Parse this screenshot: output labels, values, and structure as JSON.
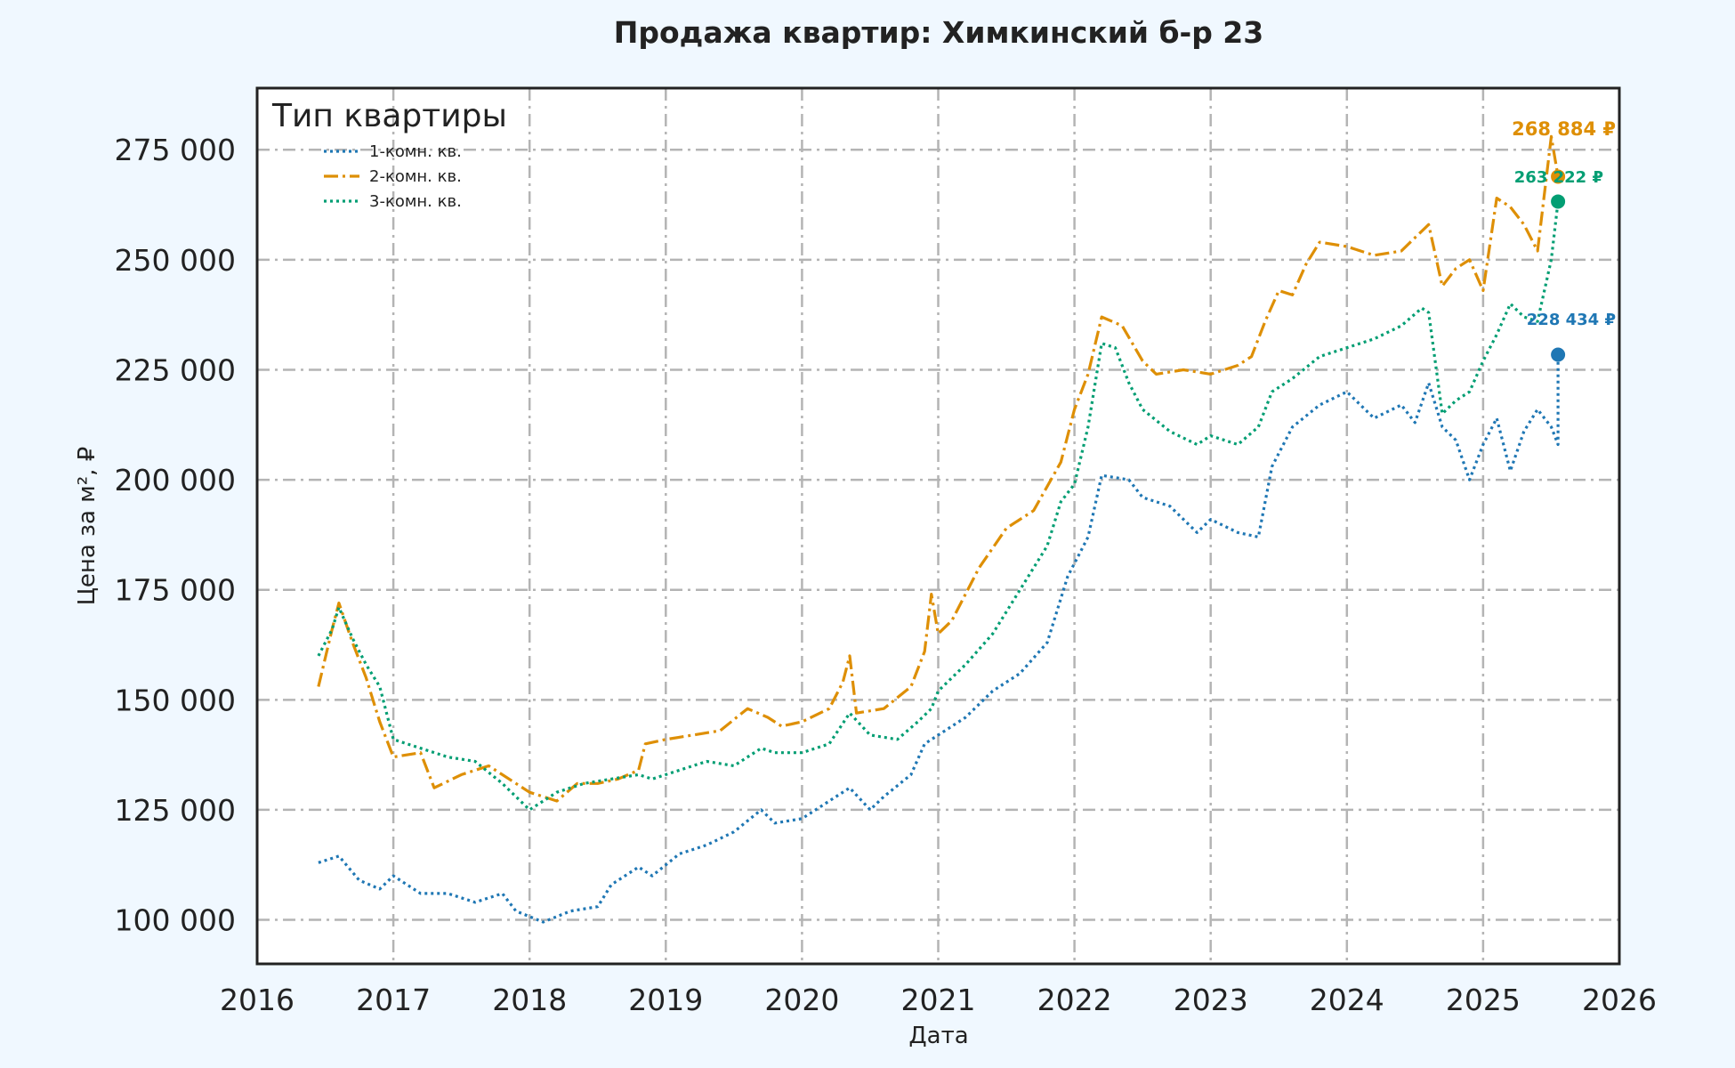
{
  "chart_data": {
    "type": "line",
    "title": "Продажа квартир: Химкинский б-р 23",
    "xlabel": "Дата",
    "ylabel": "Цена за м², ₽",
    "x_ticks": [
      "2016",
      "2017",
      "2018",
      "2019",
      "2020",
      "2021",
      "2022",
      "2023",
      "2024",
      "2025",
      "2026"
    ],
    "y_ticks": [
      "100 000",
      "125 000",
      "150 000",
      "175 000",
      "200 000",
      "225 000",
      "250 000",
      "275 000"
    ],
    "y_tick_values": [
      100000,
      125000,
      150000,
      175000,
      200000,
      225000,
      250000,
      275000
    ],
    "xlim": [
      2016.0,
      2026.0
    ],
    "ylim": [
      90000,
      289000
    ],
    "grid": true,
    "legend": {
      "title": "Тип квартиры",
      "position": "top-left"
    },
    "series": [
      {
        "name": "1-комн. кв.",
        "color": "#1f77b4",
        "style": "dotted",
        "end_label": "228 434 ₽",
        "points": [
          [
            2016.45,
            113000
          ],
          [
            2016.6,
            114500
          ],
          [
            2016.75,
            109000
          ],
          [
            2016.9,
            107000
          ],
          [
            2017.0,
            110000
          ],
          [
            2017.2,
            106000
          ],
          [
            2017.4,
            106000
          ],
          [
            2017.6,
            104000
          ],
          [
            2017.8,
            106000
          ],
          [
            2017.9,
            102000
          ],
          [
            2018.1,
            99500
          ],
          [
            2018.3,
            102000
          ],
          [
            2018.5,
            103000
          ],
          [
            2018.6,
            108000
          ],
          [
            2018.8,
            112000
          ],
          [
            2018.9,
            110000
          ],
          [
            2019.1,
            115000
          ],
          [
            2019.3,
            117000
          ],
          [
            2019.5,
            120000
          ],
          [
            2019.7,
            125000
          ],
          [
            2019.8,
            122000
          ],
          [
            2020.0,
            123000
          ],
          [
            2020.2,
            127000
          ],
          [
            2020.35,
            130000
          ],
          [
            2020.5,
            125000
          ],
          [
            2020.6,
            128000
          ],
          [
            2020.8,
            133000
          ],
          [
            2020.9,
            140000
          ],
          [
            2021.0,
            142000
          ],
          [
            2021.2,
            146000
          ],
          [
            2021.4,
            152000
          ],
          [
            2021.6,
            156000
          ],
          [
            2021.8,
            163000
          ],
          [
            2021.95,
            178000
          ],
          [
            2022.1,
            187000
          ],
          [
            2022.2,
            201000
          ],
          [
            2022.4,
            200000
          ],
          [
            2022.5,
            196000
          ],
          [
            2022.7,
            194000
          ],
          [
            2022.9,
            188000
          ],
          [
            2023.0,
            191000
          ],
          [
            2023.2,
            188000
          ],
          [
            2023.35,
            187000
          ],
          [
            2023.45,
            203000
          ],
          [
            2023.6,
            212000
          ],
          [
            2023.8,
            217000
          ],
          [
            2024.0,
            220000
          ],
          [
            2024.2,
            214000
          ],
          [
            2024.4,
            217000
          ],
          [
            2024.5,
            213000
          ],
          [
            2024.6,
            222000
          ],
          [
            2024.7,
            212000
          ],
          [
            2024.8,
            209000
          ],
          [
            2024.9,
            200000
          ],
          [
            2025.0,
            208000
          ],
          [
            2025.1,
            214000
          ],
          [
            2025.2,
            202000
          ],
          [
            2025.3,
            211000
          ],
          [
            2025.4,
            216000
          ],
          [
            2025.5,
            212000
          ],
          [
            2025.55,
            208000
          ],
          [
            2025.55,
            228434
          ]
        ]
      },
      {
        "name": "2-комн. кв.",
        "color": "#de8f05",
        "style": "dashdot",
        "end_label": "268 884 ₽",
        "points": [
          [
            2016.45,
            153000
          ],
          [
            2016.55,
            166000
          ],
          [
            2016.6,
            172000
          ],
          [
            2016.7,
            163000
          ],
          [
            2016.8,
            155000
          ],
          [
            2016.9,
            145000
          ],
          [
            2017.0,
            137000
          ],
          [
            2017.2,
            138000
          ],
          [
            2017.3,
            130000
          ],
          [
            2017.5,
            133000
          ],
          [
            2017.7,
            135000
          ],
          [
            2017.9,
            131000
          ],
          [
            2018.0,
            129000
          ],
          [
            2018.2,
            127000
          ],
          [
            2018.35,
            131000
          ],
          [
            2018.5,
            131000
          ],
          [
            2018.65,
            132000
          ],
          [
            2018.8,
            134000
          ],
          [
            2018.85,
            140000
          ],
          [
            2019.0,
            141000
          ],
          [
            2019.2,
            142000
          ],
          [
            2019.4,
            143000
          ],
          [
            2019.6,
            148000
          ],
          [
            2019.75,
            146000
          ],
          [
            2019.85,
            144000
          ],
          [
            2020.0,
            145000
          ],
          [
            2020.2,
            148000
          ],
          [
            2020.3,
            154000
          ],
          [
            2020.35,
            160000
          ],
          [
            2020.4,
            147000
          ],
          [
            2020.6,
            148000
          ],
          [
            2020.8,
            153000
          ],
          [
            2020.9,
            161000
          ],
          [
            2020.95,
            174000
          ],
          [
            2021.0,
            165000
          ],
          [
            2021.1,
            168000
          ],
          [
            2021.3,
            180000
          ],
          [
            2021.5,
            189000
          ],
          [
            2021.7,
            193000
          ],
          [
            2021.9,
            204000
          ],
          [
            2022.0,
            216000
          ],
          [
            2022.1,
            224000
          ],
          [
            2022.2,
            237000
          ],
          [
            2022.35,
            235000
          ],
          [
            2022.5,
            227000
          ],
          [
            2022.6,
            224000
          ],
          [
            2022.8,
            225000
          ],
          [
            2023.0,
            224000
          ],
          [
            2023.2,
            226000
          ],
          [
            2023.3,
            228000
          ],
          [
            2023.4,
            236000
          ],
          [
            2023.5,
            243000
          ],
          [
            2023.6,
            242000
          ],
          [
            2023.7,
            249000
          ],
          [
            2023.8,
            254000
          ],
          [
            2024.0,
            253000
          ],
          [
            2024.2,
            251000
          ],
          [
            2024.4,
            252000
          ],
          [
            2024.5,
            255000
          ],
          [
            2024.6,
            258000
          ],
          [
            2024.7,
            244000
          ],
          [
            2024.8,
            248000
          ],
          [
            2024.9,
            250000
          ],
          [
            2025.0,
            243000
          ],
          [
            2025.1,
            264000
          ],
          [
            2025.2,
            262000
          ],
          [
            2025.3,
            258000
          ],
          [
            2025.4,
            252000
          ],
          [
            2025.5,
            278000
          ],
          [
            2025.55,
            268884
          ]
        ]
      },
      {
        "name": "3-комн. кв.",
        "color": "#029e73",
        "style": "dotted",
        "end_label": "263 222 ₽",
        "points": [
          [
            2016.45,
            160000
          ],
          [
            2016.55,
            166000
          ],
          [
            2016.6,
            171000
          ],
          [
            2016.7,
            164000
          ],
          [
            2016.8,
            158000
          ],
          [
            2016.9,
            153000
          ],
          [
            2017.0,
            141000
          ],
          [
            2017.2,
            139000
          ],
          [
            2017.4,
            137000
          ],
          [
            2017.6,
            136000
          ],
          [
            2017.8,
            131000
          ],
          [
            2018.0,
            125000
          ],
          [
            2018.2,
            129000
          ],
          [
            2018.4,
            131000
          ],
          [
            2018.6,
            132000
          ],
          [
            2018.8,
            133000
          ],
          [
            2018.9,
            132000
          ],
          [
            2019.1,
            134000
          ],
          [
            2019.3,
            136000
          ],
          [
            2019.5,
            135000
          ],
          [
            2019.7,
            139000
          ],
          [
            2019.8,
            138000
          ],
          [
            2020.0,
            138000
          ],
          [
            2020.2,
            140000
          ],
          [
            2020.35,
            147000
          ],
          [
            2020.5,
            142000
          ],
          [
            2020.7,
            141000
          ],
          [
            2020.85,
            145000
          ],
          [
            2020.95,
            148000
          ],
          [
            2021.0,
            152000
          ],
          [
            2021.2,
            158000
          ],
          [
            2021.4,
            165000
          ],
          [
            2021.6,
            175000
          ],
          [
            2021.8,
            185000
          ],
          [
            2021.9,
            195000
          ],
          [
            2022.0,
            199000
          ],
          [
            2022.1,
            212000
          ],
          [
            2022.2,
            231000
          ],
          [
            2022.3,
            230000
          ],
          [
            2022.4,
            222000
          ],
          [
            2022.5,
            216000
          ],
          [
            2022.7,
            211000
          ],
          [
            2022.9,
            208000
          ],
          [
            2023.0,
            210000
          ],
          [
            2023.2,
            208000
          ],
          [
            2023.35,
            212000
          ],
          [
            2023.45,
            220000
          ],
          [
            2023.6,
            223000
          ],
          [
            2023.8,
            228000
          ],
          [
            2024.0,
            230000
          ],
          [
            2024.2,
            232000
          ],
          [
            2024.4,
            235000
          ],
          [
            2024.55,
            239000
          ],
          [
            2024.6,
            238000
          ],
          [
            2024.7,
            215000
          ],
          [
            2024.8,
            218000
          ],
          [
            2024.9,
            220000
          ],
          [
            2025.0,
            227000
          ],
          [
            2025.1,
            233000
          ],
          [
            2025.2,
            240000
          ],
          [
            2025.3,
            237000
          ],
          [
            2025.4,
            236000
          ],
          [
            2025.5,
            250000
          ],
          [
            2025.55,
            263222
          ]
        ]
      }
    ]
  }
}
